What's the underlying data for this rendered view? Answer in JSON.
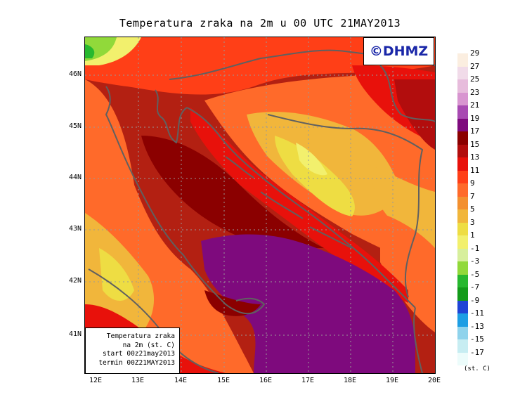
{
  "title": "Temperatura zraka na 2m u 00 UTC 21MAY2013",
  "logo": "©DHMZ",
  "info_box": {
    "line1": "Temperatura zraka",
    "line2": "na 2m (st. C)",
    "line3": "start 00z21may2013",
    "line4": "termin 00Z21MAY2013"
  },
  "lat_labels": [
    "46N",
    "45N",
    "44N",
    "43N",
    "42N",
    "41N"
  ],
  "lon_labels": [
    "12E",
    "13E",
    "14E",
    "15E",
    "16E",
    "17E",
    "18E",
    "19E",
    "20E"
  ],
  "legend": {
    "unit": "(st. C)",
    "labels": [
      "29",
      "27",
      "25",
      "23",
      "21",
      "19",
      "17",
      "15",
      "13",
      "11",
      "9",
      "7",
      "5",
      "3",
      "1",
      "-1",
      "-3",
      "-5",
      "-7",
      "-9",
      "-11",
      "-13",
      "-15",
      "-17"
    ],
    "colors": [
      "#fbeee0",
      "#f1dbe9",
      "#e7bcdc",
      "#d895d0",
      "#a84ab2",
      "#7e0a7d",
      "#8b0000",
      "#b20d0d",
      "#e8110b",
      "#ff3f17",
      "#ff6a2a",
      "#f3902f",
      "#f1b63b",
      "#eedd43",
      "#f2f06d",
      "#d7ef9c",
      "#91d93a",
      "#27b82f",
      "#139b1a",
      "#1f44d6",
      "#1d9ee4",
      "#8fd3ec",
      "#c7edf2",
      "#ecfcfb"
    ]
  },
  "map_colors": {
    "base": "#b32012",
    "sea_deep": "#8b0000",
    "coast_warm": "#e8110b",
    "inland_mid": "#ff6a2a",
    "highland": "#f1b63b",
    "peaks": "#eedd43",
    "cold_hills": "#f2f06d",
    "alpine_green": "#91d93a",
    "south_adriatic": "#7e0a7d",
    "coastline": "#606060",
    "grid": "#999999"
  }
}
